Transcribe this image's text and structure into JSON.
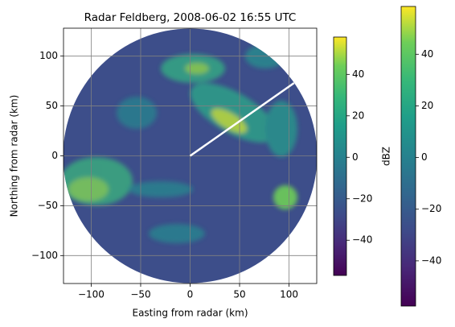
{
  "chart_data": {
    "type": "radar-ppi",
    "title": "Radar Feldberg, 2008-06-02 16:55 UTC",
    "xlabel": "Easting from radar (km)",
    "ylabel": "Northing from radar (km)",
    "xlim": [
      -128,
      128
    ],
    "ylim": [
      -128,
      128
    ],
    "xticks": [
      {
        "value": -100,
        "label": "−100"
      },
      {
        "value": -50,
        "label": "−50"
      },
      0,
      50,
      100
    ],
    "yticks": [
      {
        "value": -100,
        "label": "−100"
      },
      {
        "value": -50,
        "label": "−50"
      },
      0,
      50,
      100
    ],
    "grid": true,
    "colormap": "viridis",
    "line": {
      "x": [
        0,
        105
      ],
      "y": [
        0,
        73
      ],
      "color": "#ffffff"
    },
    "colorbars": [
      {
        "label": "dBZ",
        "lim": [
          -57,
          58
        ],
        "ticks": [
          {
            "value": -40,
            "label": "−40"
          },
          {
            "value": -20,
            "label": "−20"
          },
          0,
          20,
          40
        ]
      },
      {
        "lim": [
          -57.5,
          58.5
        ],
        "ticks": [
          {
            "value": -40,
            "label": "−40"
          },
          {
            "value": -20,
            "label": "−20"
          },
          0,
          20,
          40
        ]
      }
    ]
  }
}
